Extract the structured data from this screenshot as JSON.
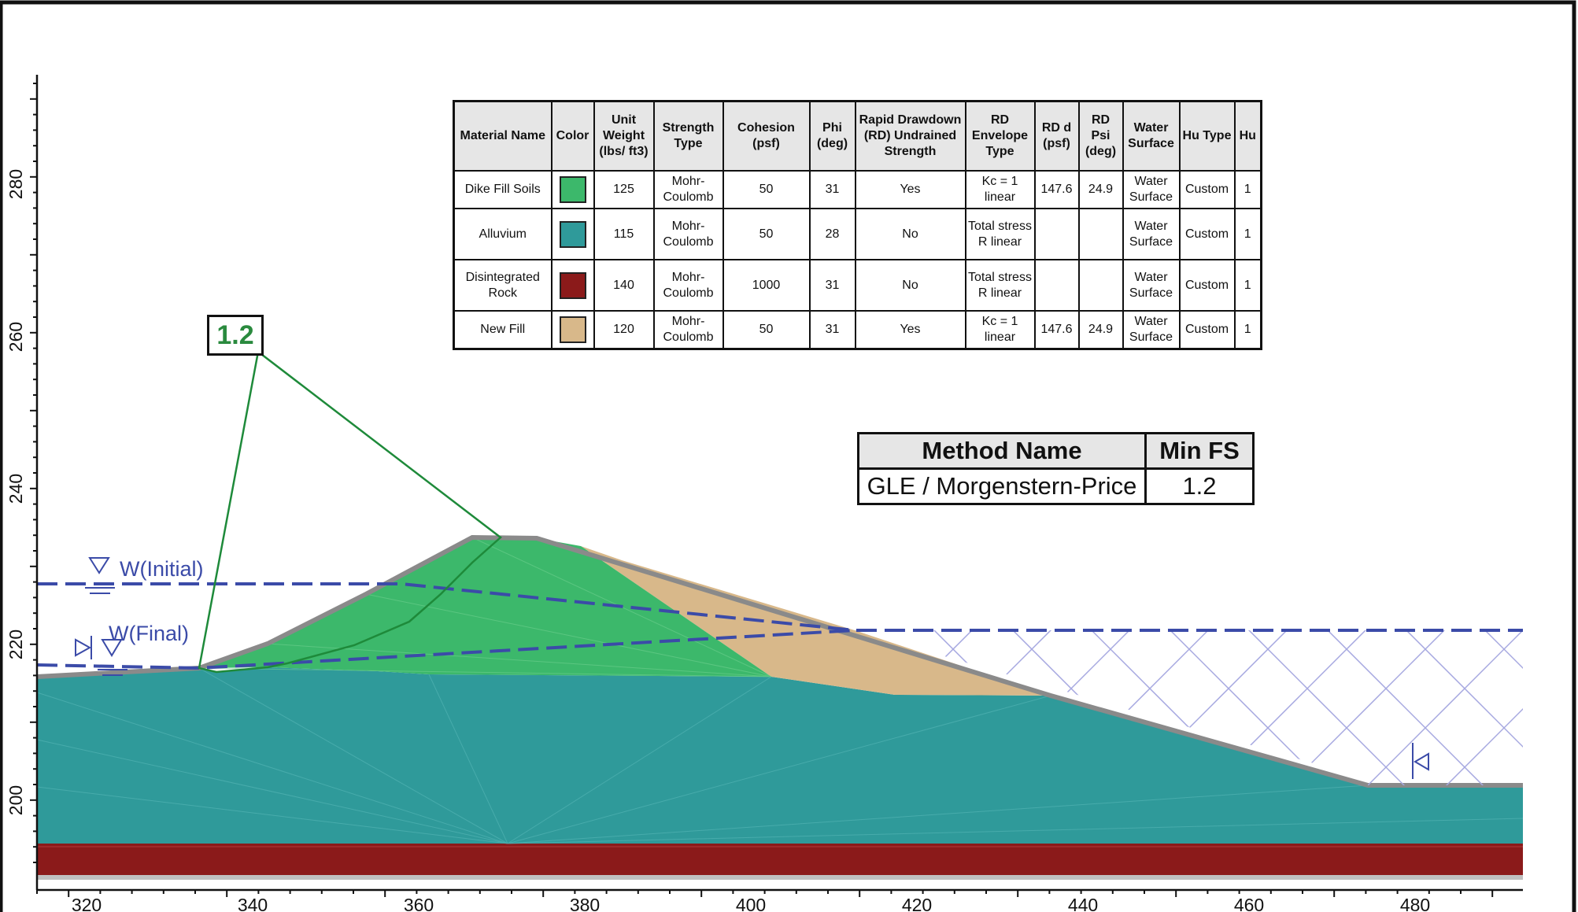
{
  "axes": {
    "x_ticks": [
      "320",
      "340",
      "360",
      "380",
      "400",
      "420",
      "440",
      "460",
      "480"
    ],
    "y_ticks": [
      "200",
      "220",
      "240",
      "260",
      "280"
    ]
  },
  "materials_table": {
    "headers": [
      "Material Name",
      "Color",
      "Unit Weight (lbs/ ft3)",
      "Strength Type",
      "Cohesion (psf)",
      "Phi (deg)",
      "Rapid Drawdown (RD) Undrained Strength",
      "RD Envelope Type",
      "RD d (psf)",
      "RD Psi (deg)",
      "Water Surface",
      "Hu Type",
      "Hu"
    ],
    "rows": [
      {
        "name": "Dike Fill Soils",
        "color": "#3cb86b",
        "unit_weight": "125",
        "strength": "Mohr-Coulomb",
        "cohesion": "50",
        "phi": "31",
        "rd": "Yes",
        "env": "Kc = 1 linear",
        "rdd": "147.6",
        "rdpsi": "24.9",
        "water": "Water Surface",
        "hutype": "Custom",
        "hu": "1"
      },
      {
        "name": "Alluvium",
        "color": "#2f9a9a",
        "unit_weight": "115",
        "strength": "Mohr-Coulomb",
        "cohesion": "50",
        "phi": "28",
        "rd": "No",
        "env": "Total stress R linear",
        "rdd": "",
        "rdpsi": "",
        "water": "Water Surface",
        "hutype": "Custom",
        "hu": "1"
      },
      {
        "name": "Disintegrated Rock",
        "color": "#8b1a1a",
        "unit_weight": "140",
        "strength": "Mohr-Coulomb",
        "cohesion": "1000",
        "phi": "31",
        "rd": "No",
        "env": "Total stress R linear",
        "rdd": "",
        "rdpsi": "",
        "water": "Water Surface",
        "hutype": "Custom",
        "hu": "1"
      },
      {
        "name": "New Fill",
        "color": "#d8b88a",
        "unit_weight": "120",
        "strength": "Mohr-Coulomb",
        "cohesion": "50",
        "phi": "31",
        "rd": "Yes",
        "env": "Kc = 1 linear",
        "rdd": "147.6",
        "rdpsi": "24.9",
        "water": "Water Surface",
        "hutype": "Custom",
        "hu": "1"
      }
    ]
  },
  "fs_table": {
    "headers": [
      "Method Name",
      "Min FS"
    ],
    "method": "GLE / Morgenstern-Price",
    "min_fs": "1.2"
  },
  "slip_surface_label": "1.2",
  "water_levels": {
    "initial_label": "W(Initial)",
    "final_label": "W(Final)"
  },
  "colors": {
    "dike_fill": "#3cb86b",
    "alluvium": "#2f9a9a",
    "rock": "#8b1a1a",
    "new_fill": "#d8b88a",
    "water_line": "#3b4ba8",
    "slip_surface": "#1e8a3a"
  }
}
